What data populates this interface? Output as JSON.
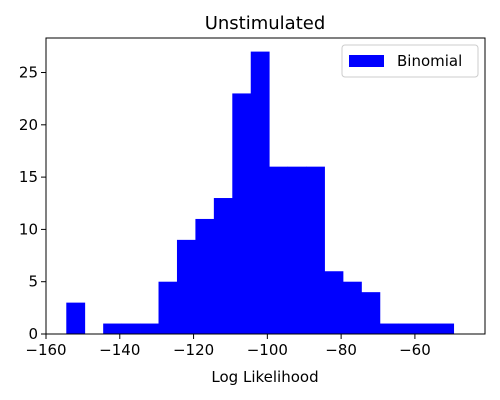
{
  "chart_data": {
    "type": "bar",
    "title": "Unstimulated",
    "xlabel": "Log Likelihood",
    "ylabel": "",
    "xlim": [
      -160,
      -41
    ],
    "ylim": [
      0,
      28.3
    ],
    "xticks": [
      -160,
      -140,
      -120,
      -100,
      -80,
      -60
    ],
    "xtick_labels": [
      "−160",
      "−140",
      "−120",
      "−100",
      "−80",
      "−60"
    ],
    "yticks": [
      0,
      5,
      10,
      15,
      20,
      25
    ],
    "ytick_labels": [
      "0",
      "5",
      "10",
      "15",
      "20",
      "25"
    ],
    "bin_start": -154.5,
    "bin_width": 5.0,
    "series": [
      {
        "name": "Binomial",
        "color": "#0000ff",
        "values": [
          3,
          0,
          1,
          1,
          1,
          5,
          9,
          11,
          13,
          23,
          27,
          16,
          16,
          16,
          6,
          5,
          4,
          1,
          1,
          1,
          1
        ]
      }
    ],
    "legend": {
      "position": "top-right",
      "entries": [
        "Binomial"
      ]
    },
    "grid": false
  }
}
